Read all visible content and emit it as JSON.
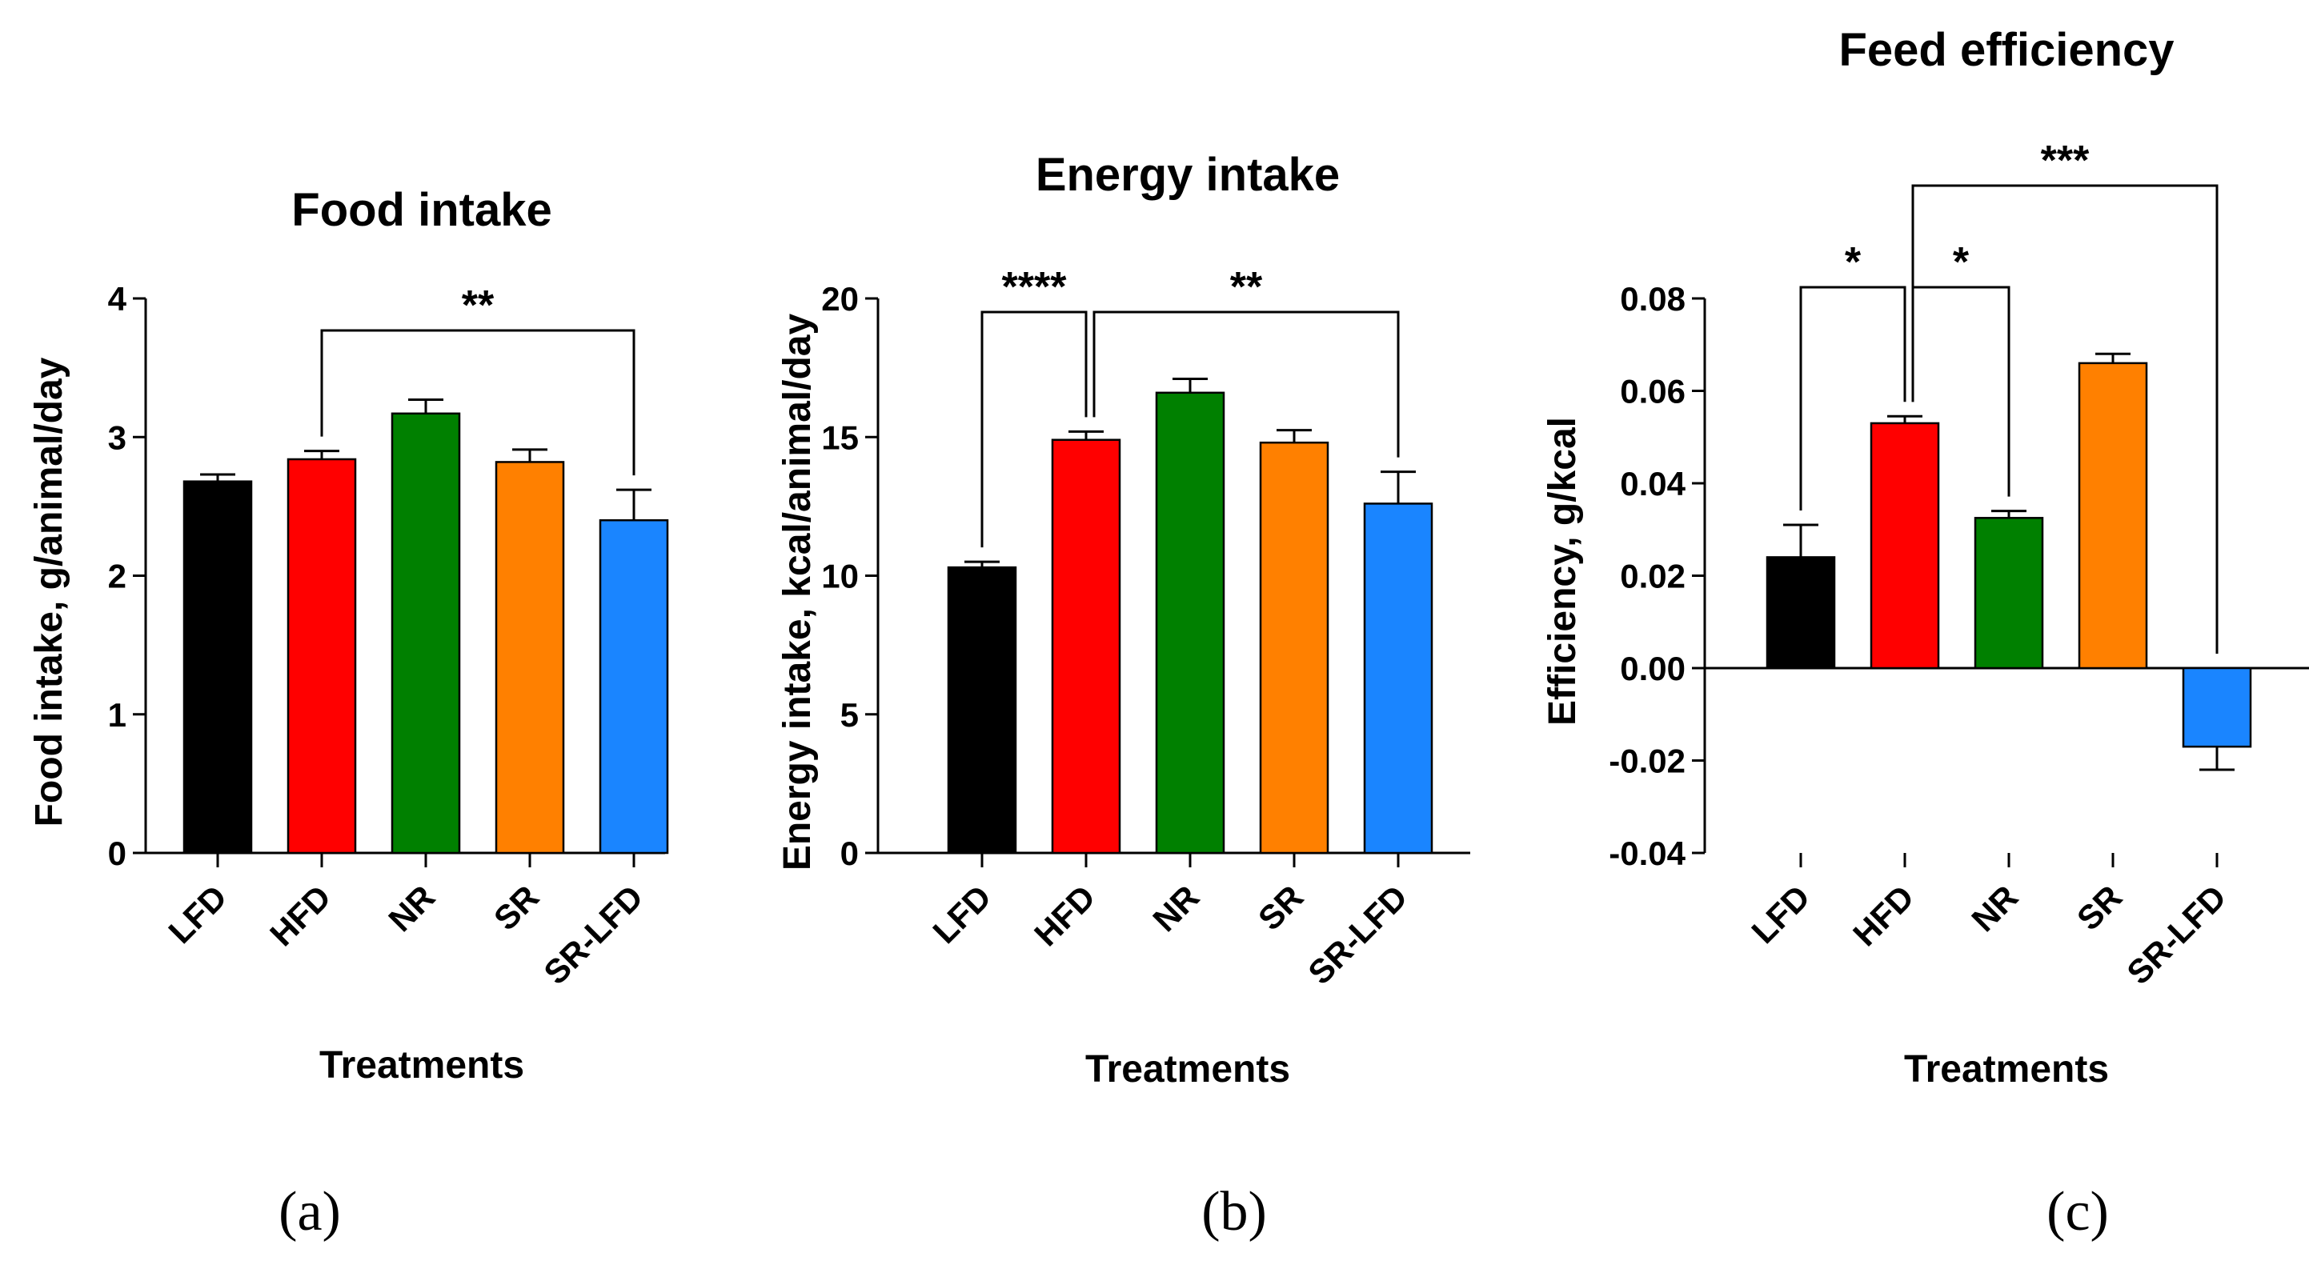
{
  "chart_data": [
    {
      "type": "bar",
      "panel_label": "(a)",
      "title": "Food intake",
      "xlabel": "Treatments",
      "ylabel": "Food intake, g/animal/day",
      "ylim": [
        0,
        4
      ],
      "yticks": [
        0,
        1,
        2,
        3,
        4
      ],
      "ytick_labels": [
        "0",
        "1",
        "2",
        "3",
        "4"
      ],
      "categories": [
        "LFD",
        "HFD",
        "NR",
        "SR",
        "SR-LFD"
      ],
      "values": [
        2.68,
        2.84,
        3.17,
        2.82,
        2.4
      ],
      "errors": [
        0.05,
        0.06,
        0.1,
        0.09,
        0.22
      ],
      "colors": [
        "#000000",
        "#ff0000",
        "#008000",
        "#ff8000",
        "#1a85ff"
      ],
      "significance": [
        {
          "from": "HFD",
          "to": "SR-LFD",
          "label": "**"
        }
      ]
    },
    {
      "type": "bar",
      "panel_label": "(b)",
      "title": "Energy intake",
      "xlabel": "Treatments",
      "ylabel": "Energy intake, kcal/animal/day",
      "ylim": [
        0,
        20
      ],
      "yticks": [
        0,
        5,
        10,
        15,
        20
      ],
      "ytick_labels": [
        "0",
        "5",
        "10",
        "15",
        "20"
      ],
      "categories": [
        "LFD",
        "HFD",
        "NR",
        "SR",
        "SR-LFD"
      ],
      "values": [
        10.3,
        14.9,
        16.6,
        14.8,
        12.6
      ],
      "errors": [
        0.2,
        0.3,
        0.5,
        0.45,
        1.15
      ],
      "colors": [
        "#000000",
        "#ff0000",
        "#008000",
        "#ff8000",
        "#1a85ff"
      ],
      "significance": [
        {
          "from": "LFD",
          "to": "HFD",
          "label": "****"
        },
        {
          "from": "HFD",
          "to": "SR-LFD",
          "label": "**"
        }
      ]
    },
    {
      "type": "bar",
      "panel_label": "(c)",
      "title": "Feed efficiency",
      "xlabel": "Treatments",
      "ylabel": "Efficiency, g/kcal",
      "ylim": [
        -0.04,
        0.08
      ],
      "yticks": [
        -0.04,
        -0.02,
        0,
        0.02,
        0.04,
        0.06,
        0.08
      ],
      "ytick_labels": [
        "-0.04",
        "-0.02",
        "0.00",
        "0.02",
        "0.04",
        "0.06",
        "0.08"
      ],
      "categories": [
        "LFD",
        "HFD",
        "NR",
        "SR",
        "SR-LFD"
      ],
      "values": [
        0.024,
        0.053,
        0.0325,
        0.066,
        -0.017
      ],
      "errors": [
        0.007,
        0.0015,
        0.0015,
        0.002,
        0.005
      ],
      "colors": [
        "#000000",
        "#ff0000",
        "#008000",
        "#ff8000",
        "#1a85ff"
      ],
      "significance": [
        {
          "from": "LFD",
          "to": "HFD",
          "label": "*"
        },
        {
          "from": "HFD",
          "to": "NR",
          "label": "*"
        },
        {
          "from": "HFD",
          "to": "SR-LFD",
          "label": "***"
        }
      ]
    }
  ]
}
